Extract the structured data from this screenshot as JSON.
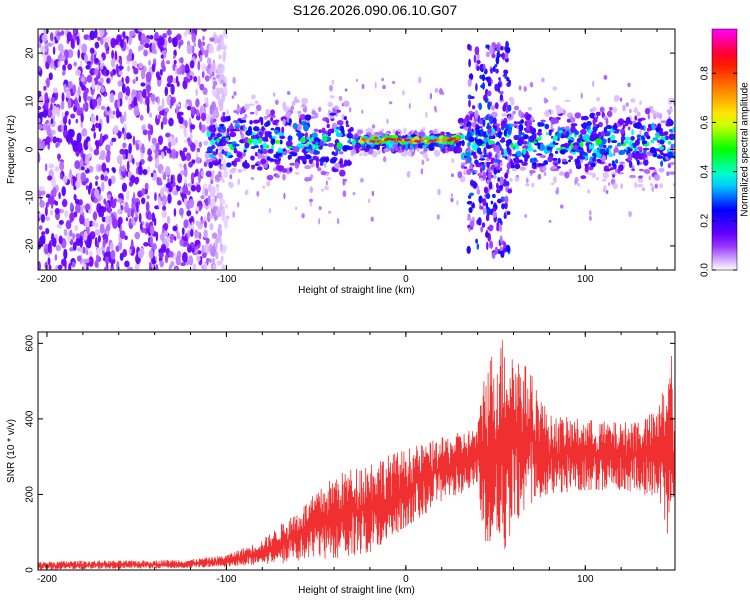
{
  "title": "S126.2026.090.06.10.G07",
  "chart_data": [
    {
      "type": "heatmap",
      "name": "spectrogram",
      "xlabel": "Height of straight line (km)",
      "ylabel": "Frequency (Hz)",
      "xlim": [
        -205,
        150
      ],
      "ylim": [
        -25,
        25
      ],
      "xticks": [
        -200,
        -100,
        0,
        100
      ],
      "xtick_labels": [
        "-200",
        "-100",
        "0",
        "100"
      ],
      "yticks": [
        -20,
        -10,
        0,
        10,
        20
      ],
      "ytick_labels": [
        "-20",
        "-10",
        "0",
        "10",
        "20"
      ],
      "colorbar": {
        "label": "Normalized spectral amplitude",
        "range": [
          0,
          0.98
        ],
        "ticks": [
          0.0,
          0.2,
          0.4,
          0.6,
          0.8
        ],
        "tick_labels": [
          "0.0",
          "0.2",
          "0.4",
          "0.6",
          "0.8"
        ],
        "colors": [
          "#ffffff",
          "#7a00ff",
          "#0000ff",
          "#00ffff",
          "#00ff00",
          "#ffff00",
          "#ff8000",
          "#ff0000",
          "#ff00ff"
        ]
      },
      "features": [
        {
          "x_range": [
            -205,
            -110
          ],
          "description": "broadband noise",
          "amplitude": 0.15
        },
        {
          "x_range": [
            -110,
            150
          ],
          "center_freq": 1.5,
          "amplitude": 0.5
        },
        {
          "x_range": [
            -25,
            30
          ],
          "center_freq": 2.0,
          "amplitude": 0.9
        },
        {
          "x_range": [
            35,
            58
          ],
          "freq_range": [
            -22,
            22
          ],
          "amplitude": 0.25
        }
      ]
    },
    {
      "type": "line",
      "name": "snr",
      "xlabel": "Height of straight line (km)",
      "ylabel": "SNR (10 * v/v)",
      "xlim": [
        -205,
        150
      ],
      "ylim": [
        0,
        630
      ],
      "xticks": [
        -200,
        -100,
        0,
        100
      ],
      "xtick_labels": [
        "-200",
        "-100",
        "0",
        "100"
      ],
      "yticks": [
        0,
        200,
        400,
        600
      ],
      "ytick_labels": [
        "0",
        "200",
        "400",
        "600"
      ],
      "color": "#f03030",
      "series": [
        {
          "name": "SNR envelope",
          "x": [
            -205,
            -180,
            -150,
            -120,
            -100,
            -80,
            -60,
            -40,
            -20,
            0,
            20,
            40,
            44,
            55,
            70,
            80,
            100,
            120,
            140,
            148,
            150
          ],
          "low": [
            0,
            2,
            3,
            5,
            8,
            15,
            20,
            30,
            40,
            110,
            180,
            220,
            70,
            40,
            170,
            200,
            210,
            210,
            190,
            60,
            180
          ],
          "high": [
            22,
            25,
            25,
            28,
            40,
            80,
            160,
            250,
            290,
            320,
            350,
            380,
            550,
            630,
            520,
            410,
            400,
            390,
            420,
            580,
            370
          ]
        }
      ]
    }
  ]
}
